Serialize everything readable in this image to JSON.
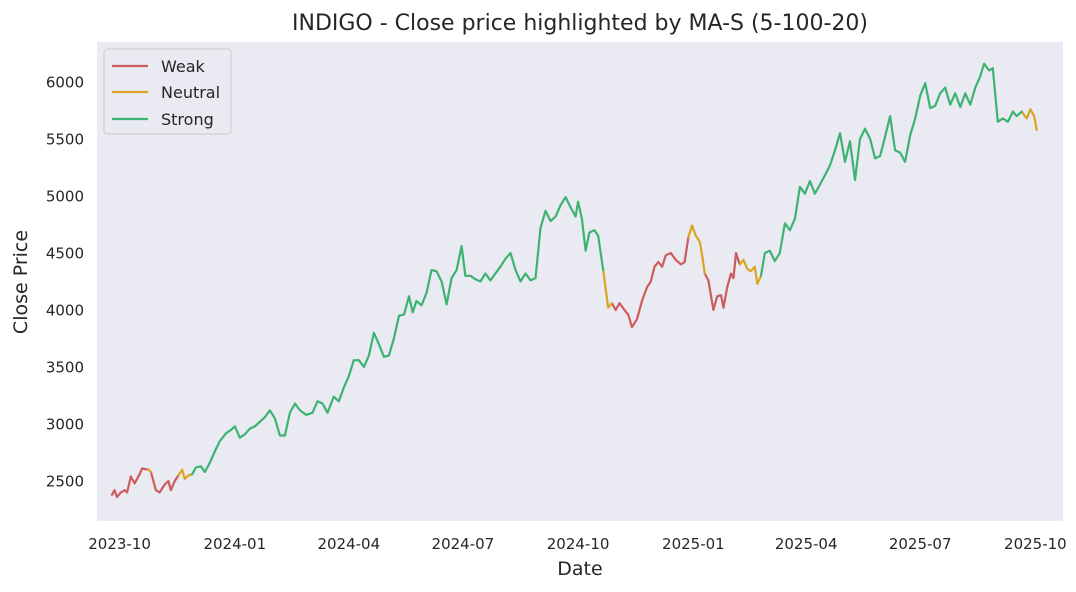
{
  "chart_data": {
    "type": "line",
    "title": "INDIGO - Close price highlighted by MA-S (5-100-20)",
    "xlabel": "Date",
    "ylabel": "Close Price",
    "xlim": [
      "2023-09-13",
      "2025-10-23"
    ],
    "ylim": [
      2150,
      6350
    ],
    "grid": false,
    "legend_position": "upper-left",
    "x_ticks": [
      "2023-10-01",
      "2024-01-01",
      "2024-04-01",
      "2024-07-01",
      "2024-10-01",
      "2025-01-01",
      "2025-04-01",
      "2025-07-01",
      "2025-10-01"
    ],
    "x_tick_labels": [
      "2023-10",
      "2024-01",
      "2024-04",
      "2024-07",
      "2024-10",
      "2025-01",
      "2025-04",
      "2025-07",
      "2025-10"
    ],
    "y_ticks": [
      2500,
      3000,
      3500,
      4000,
      4500,
      5000,
      5500,
      6000
    ],
    "y_tick_labels": [
      "2500",
      "3000",
      "3500",
      "4000",
      "4500",
      "5000",
      "5500",
      "6000"
    ],
    "series": [
      {
        "name": "Weak",
        "color": "#cd5c5c",
        "segments": [
          [
            [
              "2023-09-25",
              2380
            ],
            [
              "2023-09-27",
              2420
            ],
            [
              "2023-09-29",
              2360
            ],
            [
              "2023-10-02",
              2400
            ],
            [
              "2023-10-05",
              2420
            ],
            [
              "2023-10-07",
              2400
            ],
            [
              "2023-10-10",
              2540
            ],
            [
              "2023-10-13",
              2480
            ],
            [
              "2023-10-17",
              2560
            ],
            [
              "2023-10-19",
              2610
            ],
            [
              "2023-10-24",
              2600
            ]
          ],
          [
            [
              "2023-10-26",
              2580
            ],
            [
              "2023-10-30",
              2420
            ],
            [
              "2023-11-02",
              2400
            ],
            [
              "2023-11-06",
              2470
            ],
            [
              "2023-11-09",
              2500
            ],
            [
              "2023-11-11",
              2420
            ],
            [
              "2023-11-14",
              2500
            ],
            [
              "2023-11-17",
              2550
            ]
          ],
          [
            [
              "2024-10-28",
              4060
            ],
            [
              "2024-10-31",
              4000
            ],
            [
              "2024-11-03",
              4060
            ],
            [
              "2024-11-07",
              4000
            ],
            [
              "2024-11-10",
              3960
            ],
            [
              "2024-11-13",
              3850
            ],
            [
              "2024-11-17",
              3920
            ],
            [
              "2024-11-21",
              4080
            ],
            [
              "2024-11-25",
              4200
            ],
            [
              "2024-11-28",
              4250
            ],
            [
              "2024-12-01",
              4380
            ],
            [
              "2024-12-04",
              4420
            ],
            [
              "2024-12-07",
              4380
            ],
            [
              "2024-12-10",
              4480
            ],
            [
              "2024-12-14",
              4500
            ],
            [
              "2024-12-18",
              4440
            ],
            [
              "2024-12-22",
              4400
            ],
            [
              "2024-12-25",
              4420
            ],
            [
              "2024-12-28",
              4640
            ]
          ],
          [
            [
              "2025-01-10",
              4320
            ],
            [
              "2025-01-13",
              4260
            ],
            [
              "2025-01-17",
              4000
            ],
            [
              "2025-01-20",
              4120
            ],
            [
              "2025-01-23",
              4130
            ],
            [
              "2025-01-25",
              4020
            ],
            [
              "2025-01-28",
              4200
            ],
            [
              "2025-01-31",
              4320
            ],
            [
              "2025-02-02",
              4280
            ],
            [
              "2025-02-04",
              4500
            ],
            [
              "2025-02-07",
              4400
            ]
          ]
        ]
      },
      {
        "name": "Neutral",
        "color": "#daa520",
        "segments": [
          [
            [
              "2023-10-24",
              2600
            ],
            [
              "2023-10-26",
              2580
            ]
          ],
          [
            [
              "2023-11-17",
              2550
            ],
            [
              "2023-11-20",
              2600
            ],
            [
              "2023-11-22",
              2520
            ],
            [
              "2023-11-25",
              2550
            ],
            [
              "2023-11-28",
              2560
            ]
          ],
          [
            [
              "2024-10-21",
              4350
            ],
            [
              "2024-10-25",
              4020
            ],
            [
              "2024-10-28",
              4060
            ]
          ],
          [
            [
              "2024-12-28",
              4640
            ],
            [
              "2024-12-31",
              4740
            ],
            [
              "2025-01-03",
              4650
            ],
            [
              "2025-01-06",
              4600
            ],
            [
              "2025-01-08",
              4480
            ],
            [
              "2025-01-10",
              4320
            ]
          ],
          [
            [
              "2025-02-07",
              4400
            ],
            [
              "2025-02-10",
              4440
            ],
            [
              "2025-02-13",
              4360
            ],
            [
              "2025-02-16",
              4340
            ],
            [
              "2025-02-19",
              4380
            ],
            [
              "2025-02-21",
              4230
            ],
            [
              "2025-02-24",
              4300
            ]
          ],
          [
            [
              "2025-09-20",
              5740
            ],
            [
              "2025-09-24",
              5680
            ],
            [
              "2025-09-27",
              5760
            ],
            [
              "2025-09-30",
              5700
            ],
            [
              "2025-10-02",
              5580
            ]
          ]
        ]
      },
      {
        "name": "Strong",
        "color": "#3cb371",
        "segments": [
          [
            [
              "2023-11-28",
              2560
            ],
            [
              "2023-12-01",
              2620
            ],
            [
              "2023-12-05",
              2630
            ],
            [
              "2023-12-08",
              2580
            ],
            [
              "2023-12-12",
              2660
            ],
            [
              "2023-12-16",
              2760
            ],
            [
              "2023-12-20",
              2850
            ],
            [
              "2023-12-25",
              2920
            ],
            [
              "2023-12-29",
              2950
            ],
            [
              "2024-01-01",
              2980
            ],
            [
              "2024-01-05",
              2880
            ],
            [
              "2024-01-09",
              2910
            ],
            [
              "2024-01-13",
              2960
            ],
            [
              "2024-01-17",
              2980
            ],
            [
              "2024-01-21",
              3020
            ],
            [
              "2024-01-25",
              3060
            ],
            [
              "2024-01-29",
              3120
            ],
            [
              "2024-02-02",
              3050
            ],
            [
              "2024-02-06",
              2900
            ],
            [
              "2024-02-10",
              2900
            ],
            [
              "2024-02-14",
              3100
            ],
            [
              "2024-02-18",
              3180
            ],
            [
              "2024-02-22",
              3120
            ],
            [
              "2024-02-27",
              3080
            ],
            [
              "2024-03-03",
              3100
            ],
            [
              "2024-03-07",
              3200
            ],
            [
              "2024-03-11",
              3180
            ],
            [
              "2024-03-15",
              3100
            ],
            [
              "2024-03-20",
              3240
            ],
            [
              "2024-03-24",
              3200
            ],
            [
              "2024-03-28",
              3320
            ],
            [
              "2024-04-01",
              3420
            ],
            [
              "2024-04-05",
              3560
            ],
            [
              "2024-04-09",
              3560
            ],
            [
              "2024-04-13",
              3500
            ],
            [
              "2024-04-17",
              3600
            ],
            [
              "2024-04-21",
              3800
            ],
            [
              "2024-04-25",
              3700
            ],
            [
              "2024-04-29",
              3590
            ],
            [
              "2024-05-03",
              3600
            ],
            [
              "2024-05-07",
              3750
            ],
            [
              "2024-05-11",
              3950
            ],
            [
              "2024-05-15",
              3960
            ],
            [
              "2024-05-19",
              4120
            ],
            [
              "2024-05-22",
              3980
            ],
            [
              "2024-05-25",
              4080
            ],
            [
              "2024-05-29",
              4040
            ],
            [
              "2024-06-02",
              4150
            ],
            [
              "2024-06-06",
              4350
            ],
            [
              "2024-06-10",
              4340
            ],
            [
              "2024-06-14",
              4250
            ],
            [
              "2024-06-18",
              4050
            ],
            [
              "2024-06-22",
              4280
            ],
            [
              "2024-06-26",
              4350
            ],
            [
              "2024-06-30",
              4560
            ],
            [
              "2024-07-03",
              4300
            ],
            [
              "2024-07-07",
              4300
            ],
            [
              "2024-07-11",
              4270
            ],
            [
              "2024-07-15",
              4250
            ],
            [
              "2024-07-19",
              4320
            ],
            [
              "2024-07-23",
              4260
            ],
            [
              "2024-07-27",
              4320
            ],
            [
              "2024-07-31",
              4380
            ],
            [
              "2024-08-04",
              4450
            ],
            [
              "2024-08-08",
              4500
            ],
            [
              "2024-08-12",
              4350
            ],
            [
              "2024-08-16",
              4250
            ],
            [
              "2024-08-20",
              4320
            ],
            [
              "2024-08-24",
              4260
            ],
            [
              "2024-08-28",
              4280
            ],
            [
              "2024-09-01",
              4720
            ],
            [
              "2024-09-05",
              4870
            ],
            [
              "2024-09-09",
              4780
            ],
            [
              "2024-09-13",
              4820
            ],
            [
              "2024-09-17",
              4920
            ],
            [
              "2024-09-21",
              4990
            ],
            [
              "2024-09-25",
              4900
            ],
            [
              "2024-09-29",
              4820
            ],
            [
              "2024-10-01",
              4950
            ],
            [
              "2024-10-04",
              4800
            ],
            [
              "2024-10-07",
              4520
            ],
            [
              "2024-10-10",
              4680
            ],
            [
              "2024-10-14",
              4700
            ],
            [
              "2024-10-17",
              4650
            ],
            [
              "2024-10-21",
              4350
            ]
          ],
          [
            [
              "2025-02-24",
              4300
            ],
            [
              "2025-02-27",
              4500
            ],
            [
              "2025-03-03",
              4520
            ],
            [
              "2025-03-07",
              4430
            ],
            [
              "2025-03-11",
              4500
            ],
            [
              "2025-03-15",
              4760
            ],
            [
              "2025-03-19",
              4700
            ],
            [
              "2025-03-23",
              4800
            ],
            [
              "2025-03-27",
              5080
            ],
            [
              "2025-03-31",
              5020
            ],
            [
              "2025-04-04",
              5130
            ],
            [
              "2025-04-08",
              5020
            ],
            [
              "2025-04-12",
              5100
            ],
            [
              "2025-04-16",
              5180
            ],
            [
              "2025-04-20",
              5270
            ],
            [
              "2025-04-24",
              5400
            ],
            [
              "2025-04-28",
              5550
            ],
            [
              "2025-05-02",
              5300
            ],
            [
              "2025-05-06",
              5480
            ],
            [
              "2025-05-10",
              5140
            ],
            [
              "2025-05-14",
              5500
            ],
            [
              "2025-05-18",
              5590
            ],
            [
              "2025-05-22",
              5500
            ],
            [
              "2025-05-26",
              5330
            ],
            [
              "2025-05-30",
              5350
            ],
            [
              "2025-06-03",
              5520
            ],
            [
              "2025-06-07",
              5700
            ],
            [
              "2025-06-11",
              5400
            ],
            [
              "2025-06-15",
              5380
            ],
            [
              "2025-06-19",
              5300
            ],
            [
              "2025-06-23",
              5530
            ],
            [
              "2025-06-27",
              5680
            ],
            [
              "2025-07-01",
              5880
            ],
            [
              "2025-07-05",
              5990
            ],
            [
              "2025-07-09",
              5770
            ],
            [
              "2025-07-13",
              5790
            ],
            [
              "2025-07-17",
              5900
            ],
            [
              "2025-07-21",
              5950
            ],
            [
              "2025-07-25",
              5800
            ],
            [
              "2025-07-29",
              5900
            ],
            [
              "2025-08-02",
              5780
            ],
            [
              "2025-08-06",
              5900
            ],
            [
              "2025-08-10",
              5800
            ],
            [
              "2025-08-14",
              5950
            ],
            [
              "2025-08-18",
              6050
            ],
            [
              "2025-08-21",
              6160
            ],
            [
              "2025-08-25",
              6100
            ],
            [
              "2025-08-28",
              6120
            ],
            [
              "2025-09-01",
              5650
            ],
            [
              "2025-09-05",
              5680
            ],
            [
              "2025-09-09",
              5650
            ],
            [
              "2025-09-13",
              5740
            ],
            [
              "2025-09-16",
              5700
            ],
            [
              "2025-09-20",
              5740
            ]
          ]
        ]
      }
    ]
  }
}
